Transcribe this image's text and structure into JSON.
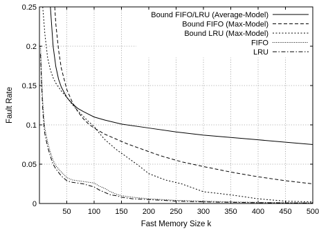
{
  "chart_data": {
    "type": "line",
    "title": "",
    "xlabel": "Fast Memory Size k",
    "ylabel": "Fault Rate",
    "xlim": [
      0,
      500
    ],
    "ylim": [
      0,
      0.25
    ],
    "x_ticks": [
      50,
      100,
      150,
      200,
      250,
      300,
      350,
      400,
      450,
      500
    ],
    "y_ticks": [
      0,
      0.05,
      0.1,
      0.15,
      0.2,
      0.25
    ],
    "x_tick_labels": [
      "50",
      "100",
      "150",
      "200",
      "250",
      "300",
      "350",
      "400",
      "450",
      "500"
    ],
    "y_tick_labels": [
      "0",
      "0.05",
      "0.1",
      "0.15",
      "0.2",
      "0.25"
    ],
    "grid": true,
    "legend_position": "top-right",
    "series": [
      {
        "name": "Bound FIFO/LRU (Average-Model)",
        "dash": "solid",
        "x": [
          20,
          25,
          30,
          35,
          40,
          50,
          60,
          70,
          80,
          100,
          120,
          150,
          200,
          250,
          300,
          350,
          400,
          450,
          500
        ],
        "y": [
          0.25,
          0.2,
          0.174,
          0.158,
          0.148,
          0.135,
          0.127,
          0.121,
          0.117,
          0.11,
          0.106,
          0.101,
          0.096,
          0.091,
          0.087,
          0.084,
          0.081,
          0.078,
          0.075
        ]
      },
      {
        "name": "Bound FIFO (Max-Model)",
        "dash": "dashed",
        "x": [
          28,
          30,
          35,
          40,
          50,
          60,
          70,
          80,
          90,
          100,
          120,
          140,
          160,
          180,
          200,
          220,
          240,
          260,
          280,
          300,
          350,
          400,
          450,
          500
        ],
        "y": [
          0.25,
          0.228,
          0.195,
          0.172,
          0.145,
          0.129,
          0.117,
          0.108,
          0.101,
          0.096,
          0.088,
          0.082,
          0.076,
          0.071,
          0.066,
          0.061,
          0.057,
          0.053,
          0.05,
          0.047,
          0.04,
          0.034,
          0.029,
          0.025
        ]
      },
      {
        "name": "Bound LRU (Max-Model)",
        "dash": "dotted",
        "x": [
          6,
          10,
          15,
          20,
          25,
          30,
          35,
          40,
          45,
          50,
          60,
          70,
          80,
          90,
          100,
          110,
          120,
          140,
          160,
          180,
          200,
          230,
          260,
          300,
          350,
          400,
          450,
          500
        ],
        "y": [
          0.25,
          0.215,
          0.185,
          0.17,
          0.16,
          0.153,
          0.148,
          0.143,
          0.139,
          0.135,
          0.126,
          0.118,
          0.111,
          0.104,
          0.098,
          0.089,
          0.081,
          0.069,
          0.059,
          0.049,
          0.038,
          0.03,
          0.025,
          0.015,
          0.011,
          0.006,
          0.003,
          0.002
        ]
      },
      {
        "name": "FIFO",
        "dash": "finedot",
        "x": [
          2,
          4,
          6,
          8,
          10,
          15,
          20,
          25,
          30,
          40,
          50,
          60,
          70,
          80,
          90,
          100,
          110,
          120,
          130,
          140,
          150,
          170,
          200,
          250,
          300,
          350,
          400,
          450,
          500
        ],
        "y": [
          0.2,
          0.16,
          0.13,
          0.11,
          0.095,
          0.078,
          0.065,
          0.055,
          0.048,
          0.04,
          0.033,
          0.03,
          0.029,
          0.028,
          0.027,
          0.026,
          0.022,
          0.019,
          0.015,
          0.012,
          0.01,
          0.008,
          0.006,
          0.004,
          0.003,
          0.002,
          0.0015,
          0.001,
          0.001
        ]
      },
      {
        "name": "LRU",
        "dash": "dashdot",
        "x": [
          2,
          4,
          6,
          8,
          10,
          15,
          20,
          25,
          30,
          40,
          50,
          60,
          70,
          80,
          90,
          100,
          110,
          120,
          130,
          140,
          150,
          170,
          200,
          250,
          300,
          350,
          400,
          450,
          500
        ],
        "y": [
          0.19,
          0.15,
          0.12,
          0.1,
          0.088,
          0.072,
          0.06,
          0.05,
          0.044,
          0.035,
          0.029,
          0.027,
          0.026,
          0.025,
          0.023,
          0.021,
          0.017,
          0.014,
          0.011,
          0.01,
          0.008,
          0.006,
          0.005,
          0.003,
          0.002,
          0.0015,
          0.001,
          0.0008,
          0.0005
        ]
      }
    ]
  },
  "colors": {
    "lines": "#000000",
    "grid": "#9a9a9a",
    "background": "#ffffff"
  }
}
